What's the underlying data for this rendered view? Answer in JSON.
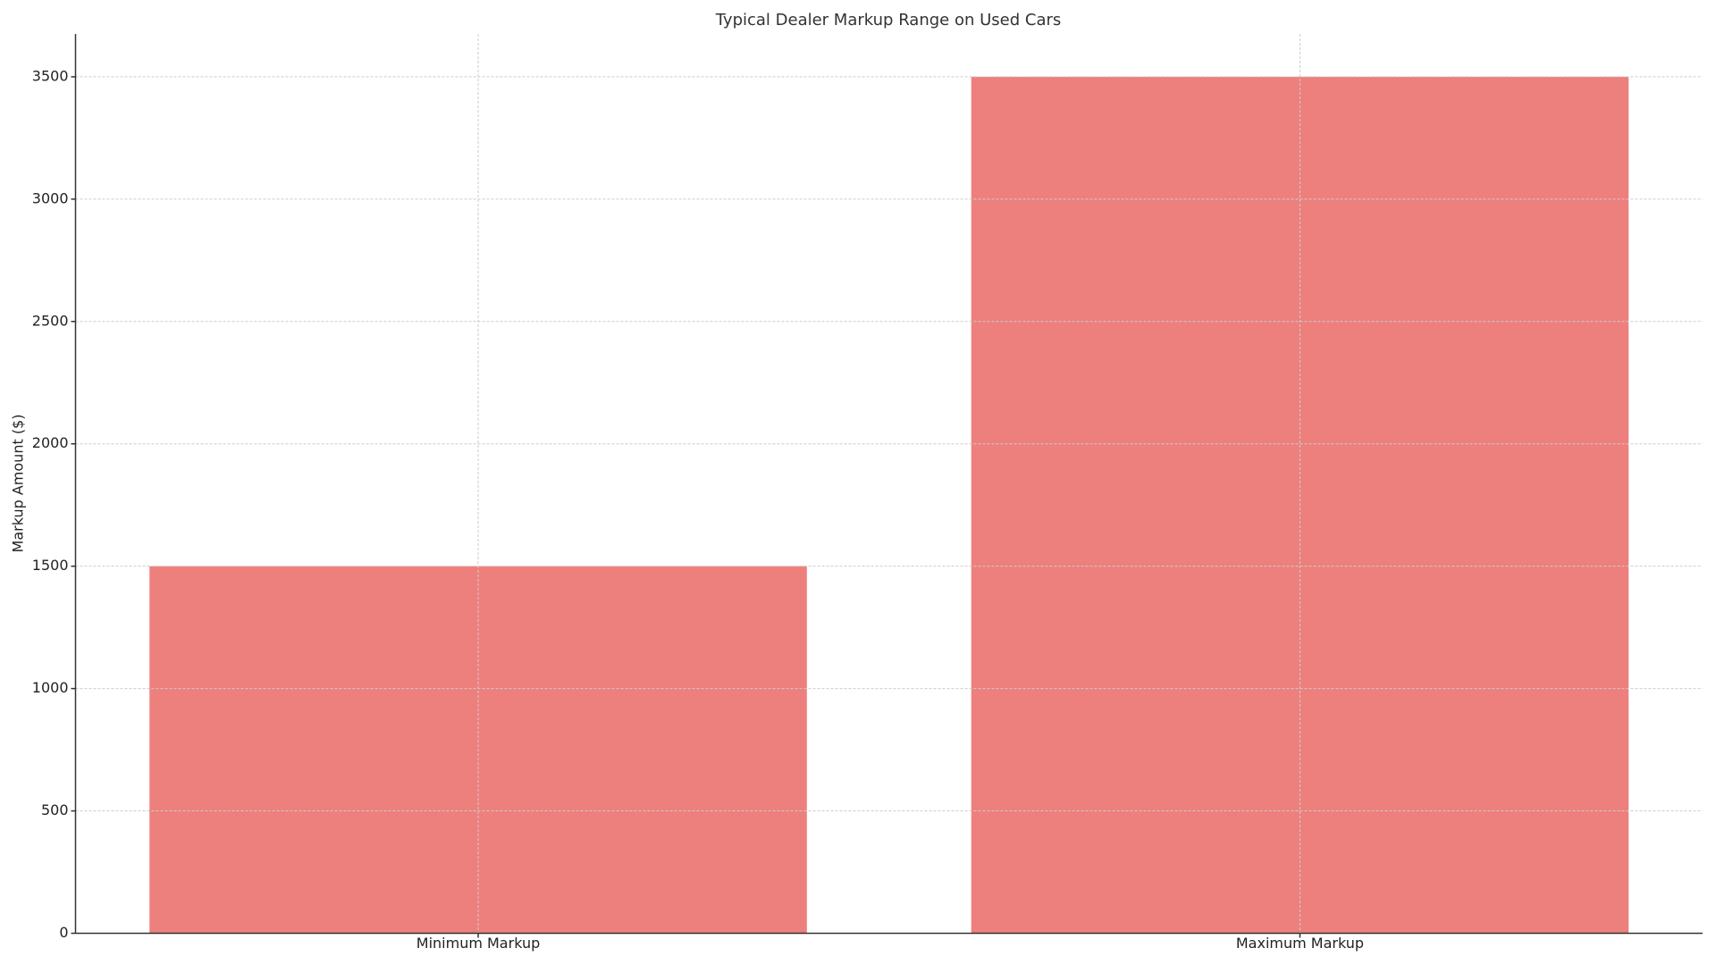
{
  "chart_data": {
    "type": "bar",
    "title": "Typical Dealer Markup Range on Used Cars",
    "y_label": "Markup Amount ($)",
    "categories": [
      "Minimum Markup",
      "Maximum Markup"
    ],
    "values": [
      1500,
      3500
    ],
    "color": "#e8605c",
    "ylim": [
      0,
      3675
    ],
    "yticks": [
      0,
      500,
      1000,
      1500,
      2000,
      2500,
      3000,
      3500
    ],
    "grid": true
  }
}
